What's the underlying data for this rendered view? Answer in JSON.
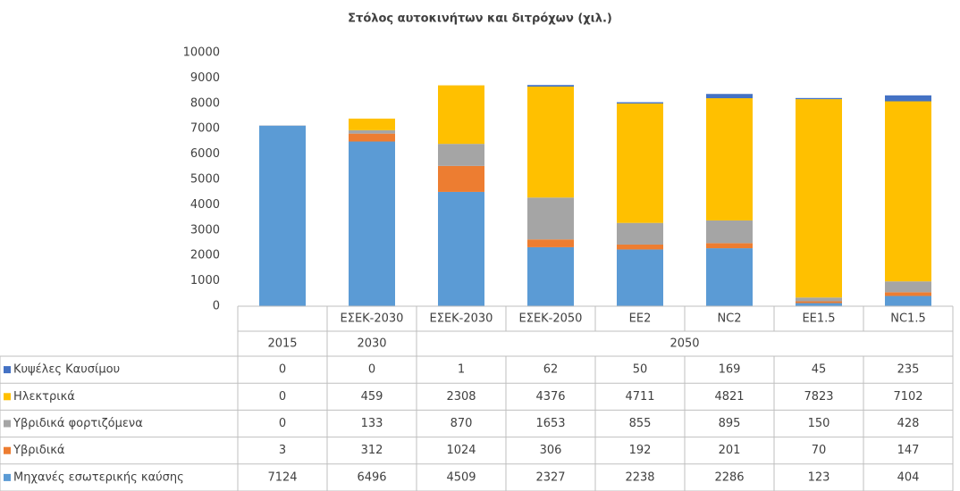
{
  "chart_data": {
    "type": "stacked_bar",
    "title": "Στόλος αυτοκινήτων και διτρόχων (χιλ.)",
    "categories": [
      null,
      "ΕΣΕΚ-2030",
      "ΕΣΕΚ-2030",
      "ΕΣΕΚ-2050",
      "ΕΕ2",
      "NC2",
      "ΕΕ1.5",
      "NC1.5"
    ],
    "groups": [
      {
        "label": "2015",
        "size": 1
      },
      {
        "label": "2030",
        "size": 1
      },
      {
        "label": "2050",
        "size": 6
      }
    ],
    "series": [
      {
        "name": "Μηχανές εσωτερικής καύσης",
        "color": "#5b9bd5",
        "values": [
          7124,
          6496,
          4509,
          2327,
          2238,
          2286,
          123,
          404
        ]
      },
      {
        "name": "Υβριδικά",
        "color": "#ed7d31",
        "values": [
          3,
          312,
          1024,
          306,
          192,
          201,
          70,
          147
        ]
      },
      {
        "name": "Υβριδικά φορτιζόμενα",
        "color": "#a5a5a5",
        "values": [
          0,
          133,
          870,
          1653,
          855,
          895,
          150,
          428
        ]
      },
      {
        "name": "Ηλεκτρικά",
        "color": "#ffc000",
        "values": [
          0,
          459,
          2308,
          4376,
          4711,
          4821,
          7823,
          7102
        ]
      },
      {
        "name": "Κυψέλες Καυσίμου",
        "color": "#4472c4",
        "values": [
          0,
          0,
          1,
          62,
          50,
          169,
          45,
          235
        ]
      }
    ],
    "ylim": [
      0,
      10000
    ],
    "yticks": [
      0,
      1000,
      2000,
      3000,
      4000,
      5000,
      6000,
      7000,
      8000,
      9000,
      10000
    ],
    "grid": false
  }
}
